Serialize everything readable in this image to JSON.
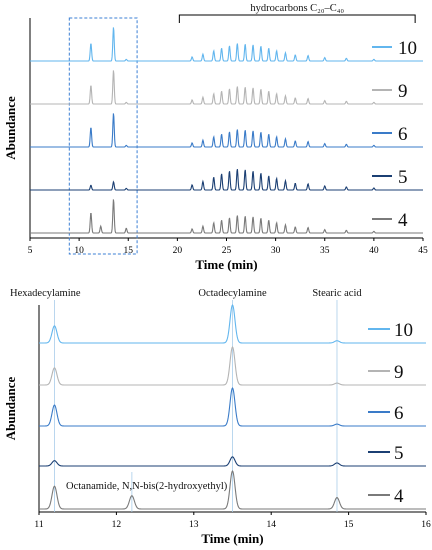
{
  "chart_data": [
    {
      "type": "line",
      "subtype": "stacked-chromatograms",
      "xlabel": "Time (min)",
      "ylabel": "Abundance",
      "xlim": [
        5,
        45
      ],
      "x_ticks": [
        5,
        10,
        15,
        20,
        25,
        30,
        35,
        40,
        45
      ],
      "bracket_label": "hydrocarbons C₂₀–C₄₀",
      "bracket_range": [
        20.2,
        44.2
      ],
      "dashed_box_x_range": [
        9,
        15.9
      ],
      "series": [
        {
          "name": "10",
          "color": "#62b6ee",
          "peaks": [
            {
              "t": 11.2,
              "h": 0.52
            },
            {
              "t": 13.5,
              "h": 1.0
            },
            {
              "t": 14.8,
              "h": 0.05
            },
            {
              "t": 21.5,
              "h": 0.12
            },
            {
              "t": 22.6,
              "h": 0.2
            },
            {
              "t": 23.7,
              "h": 0.3
            },
            {
              "t": 24.5,
              "h": 0.38
            },
            {
              "t": 25.3,
              "h": 0.45
            },
            {
              "t": 26.1,
              "h": 0.52
            },
            {
              "t": 26.9,
              "h": 0.5
            },
            {
              "t": 27.7,
              "h": 0.48
            },
            {
              "t": 28.5,
              "h": 0.44
            },
            {
              "t": 29.3,
              "h": 0.38
            },
            {
              "t": 30.1,
              "h": 0.3
            },
            {
              "t": 31.0,
              "h": 0.24
            },
            {
              "t": 32.0,
              "h": 0.18
            },
            {
              "t": 33.3,
              "h": 0.16
            },
            {
              "t": 35.0,
              "h": 0.1
            },
            {
              "t": 37.2,
              "h": 0.08
            },
            {
              "t": 40.0,
              "h": 0.05
            }
          ]
        },
        {
          "name": "9",
          "color": "#b4b4b4",
          "peaks": [
            {
              "t": 11.2,
              "h": 0.55
            },
            {
              "t": 13.5,
              "h": 1.0
            },
            {
              "t": 14.8,
              "h": 0.05
            },
            {
              "t": 21.5,
              "h": 0.12
            },
            {
              "t": 22.6,
              "h": 0.2
            },
            {
              "t": 23.7,
              "h": 0.3
            },
            {
              "t": 24.5,
              "h": 0.38
            },
            {
              "t": 25.3,
              "h": 0.45
            },
            {
              "t": 26.1,
              "h": 0.52
            },
            {
              "t": 26.9,
              "h": 0.5
            },
            {
              "t": 27.7,
              "h": 0.48
            },
            {
              "t": 28.5,
              "h": 0.44
            },
            {
              "t": 29.3,
              "h": 0.38
            },
            {
              "t": 30.1,
              "h": 0.3
            },
            {
              "t": 31.0,
              "h": 0.24
            },
            {
              "t": 32.0,
              "h": 0.18
            },
            {
              "t": 33.3,
              "h": 0.16
            },
            {
              "t": 35.0,
              "h": 0.1
            },
            {
              "t": 37.2,
              "h": 0.08
            },
            {
              "t": 40.0,
              "h": 0.05
            }
          ]
        },
        {
          "name": "6",
          "color": "#3a7bc8",
          "peaks": [
            {
              "t": 11.2,
              "h": 0.58
            },
            {
              "t": 13.5,
              "h": 1.0
            },
            {
              "t": 14.8,
              "h": 0.05
            },
            {
              "t": 21.5,
              "h": 0.12
            },
            {
              "t": 22.6,
              "h": 0.2
            },
            {
              "t": 23.7,
              "h": 0.3
            },
            {
              "t": 24.5,
              "h": 0.38
            },
            {
              "t": 25.3,
              "h": 0.45
            },
            {
              "t": 26.1,
              "h": 0.52
            },
            {
              "t": 26.9,
              "h": 0.5
            },
            {
              "t": 27.7,
              "h": 0.48
            },
            {
              "t": 28.5,
              "h": 0.44
            },
            {
              "t": 29.3,
              "h": 0.38
            },
            {
              "t": 30.1,
              "h": 0.3
            },
            {
              "t": 31.0,
              "h": 0.24
            },
            {
              "t": 32.0,
              "h": 0.18
            },
            {
              "t": 33.3,
              "h": 0.16
            },
            {
              "t": 35.0,
              "h": 0.1
            },
            {
              "t": 37.2,
              "h": 0.08
            },
            {
              "t": 40.0,
              "h": 0.05
            }
          ]
        },
        {
          "name": "5",
          "color": "#1b3f73",
          "peaks": [
            {
              "t": 11.2,
              "h": 0.14
            },
            {
              "t": 13.5,
              "h": 0.24
            },
            {
              "t": 14.8,
              "h": 0.05
            },
            {
              "t": 21.5,
              "h": 0.15
            },
            {
              "t": 22.6,
              "h": 0.25
            },
            {
              "t": 23.7,
              "h": 0.38
            },
            {
              "t": 24.5,
              "h": 0.48
            },
            {
              "t": 25.3,
              "h": 0.56
            },
            {
              "t": 26.1,
              "h": 0.62
            },
            {
              "t": 26.9,
              "h": 0.6
            },
            {
              "t": 27.7,
              "h": 0.56
            },
            {
              "t": 28.5,
              "h": 0.5
            },
            {
              "t": 29.3,
              "h": 0.42
            },
            {
              "t": 30.1,
              "h": 0.34
            },
            {
              "t": 31.0,
              "h": 0.27
            },
            {
              "t": 32.0,
              "h": 0.2
            },
            {
              "t": 33.3,
              "h": 0.18
            },
            {
              "t": 35.0,
              "h": 0.12
            },
            {
              "t": 37.2,
              "h": 0.09
            },
            {
              "t": 40.0,
              "h": 0.06
            }
          ]
        },
        {
          "name": "4",
          "color": "#7a7a7a",
          "peaks": [
            {
              "t": 11.2,
              "h": 0.6
            },
            {
              "t": 12.2,
              "h": 0.2
            },
            {
              "t": 13.5,
              "h": 1.0
            },
            {
              "t": 14.8,
              "h": 0.14
            },
            {
              "t": 21.5,
              "h": 0.12
            },
            {
              "t": 22.6,
              "h": 0.2
            },
            {
              "t": 23.7,
              "h": 0.3
            },
            {
              "t": 24.5,
              "h": 0.38
            },
            {
              "t": 25.3,
              "h": 0.45
            },
            {
              "t": 26.1,
              "h": 0.52
            },
            {
              "t": 26.9,
              "h": 0.5
            },
            {
              "t": 27.7,
              "h": 0.48
            },
            {
              "t": 28.5,
              "h": 0.44
            },
            {
              "t": 29.3,
              "h": 0.38
            },
            {
              "t": 30.1,
              "h": 0.3
            },
            {
              "t": 31.0,
              "h": 0.24
            },
            {
              "t": 32.0,
              "h": 0.18
            },
            {
              "t": 33.3,
              "h": 0.16
            },
            {
              "t": 35.0,
              "h": 0.1
            },
            {
              "t": 37.2,
              "h": 0.08
            },
            {
              "t": 40.0,
              "h": 0.05
            }
          ]
        }
      ]
    },
    {
      "type": "line",
      "subtype": "stacked-chromatograms",
      "xlabel": "Time (min)",
      "ylabel": "Abundance",
      "xlim": [
        11,
        16
      ],
      "x_ticks": [
        11,
        12,
        13,
        14,
        15,
        16
      ],
      "reference_lines": [
        {
          "t": 11.2,
          "label": "Hexadecylamine"
        },
        {
          "t": 13.5,
          "label": "Octadecylamine"
        },
        {
          "t": 14.85,
          "label": "Stearic acid"
        },
        {
          "t": 12.2,
          "label": "Octanamide, N,N-bis(2-hydroxyethyl)"
        }
      ],
      "series": [
        {
          "name": "10",
          "color": "#62b6ee",
          "peaks": [
            {
              "t": 11.2,
              "h": 0.45
            },
            {
              "t": 13.5,
              "h": 1.0
            },
            {
              "t": 14.85,
              "h": 0.06
            }
          ]
        },
        {
          "name": "9",
          "color": "#b4b4b4",
          "peaks": [
            {
              "t": 11.2,
              "h": 0.45
            },
            {
              "t": 13.5,
              "h": 1.0
            },
            {
              "t": 14.85,
              "h": 0.05
            }
          ]
        },
        {
          "name": "6",
          "color": "#3a7bc8",
          "peaks": [
            {
              "t": 11.2,
              "h": 0.55
            },
            {
              "t": 13.5,
              "h": 1.0
            },
            {
              "t": 14.85,
              "h": 0.05
            }
          ]
        },
        {
          "name": "5",
          "color": "#1b3f73",
          "peaks": [
            {
              "t": 11.2,
              "h": 0.14
            },
            {
              "t": 13.5,
              "h": 0.24
            },
            {
              "t": 14.85,
              "h": 0.08
            }
          ]
        },
        {
          "name": "4",
          "color": "#7a7a7a",
          "peaks": [
            {
              "t": 11.2,
              "h": 0.6
            },
            {
              "t": 12.2,
              "h": 0.35
            },
            {
              "t": 13.5,
              "h": 1.0
            },
            {
              "t": 14.85,
              "h": 0.3
            }
          ]
        }
      ]
    }
  ]
}
